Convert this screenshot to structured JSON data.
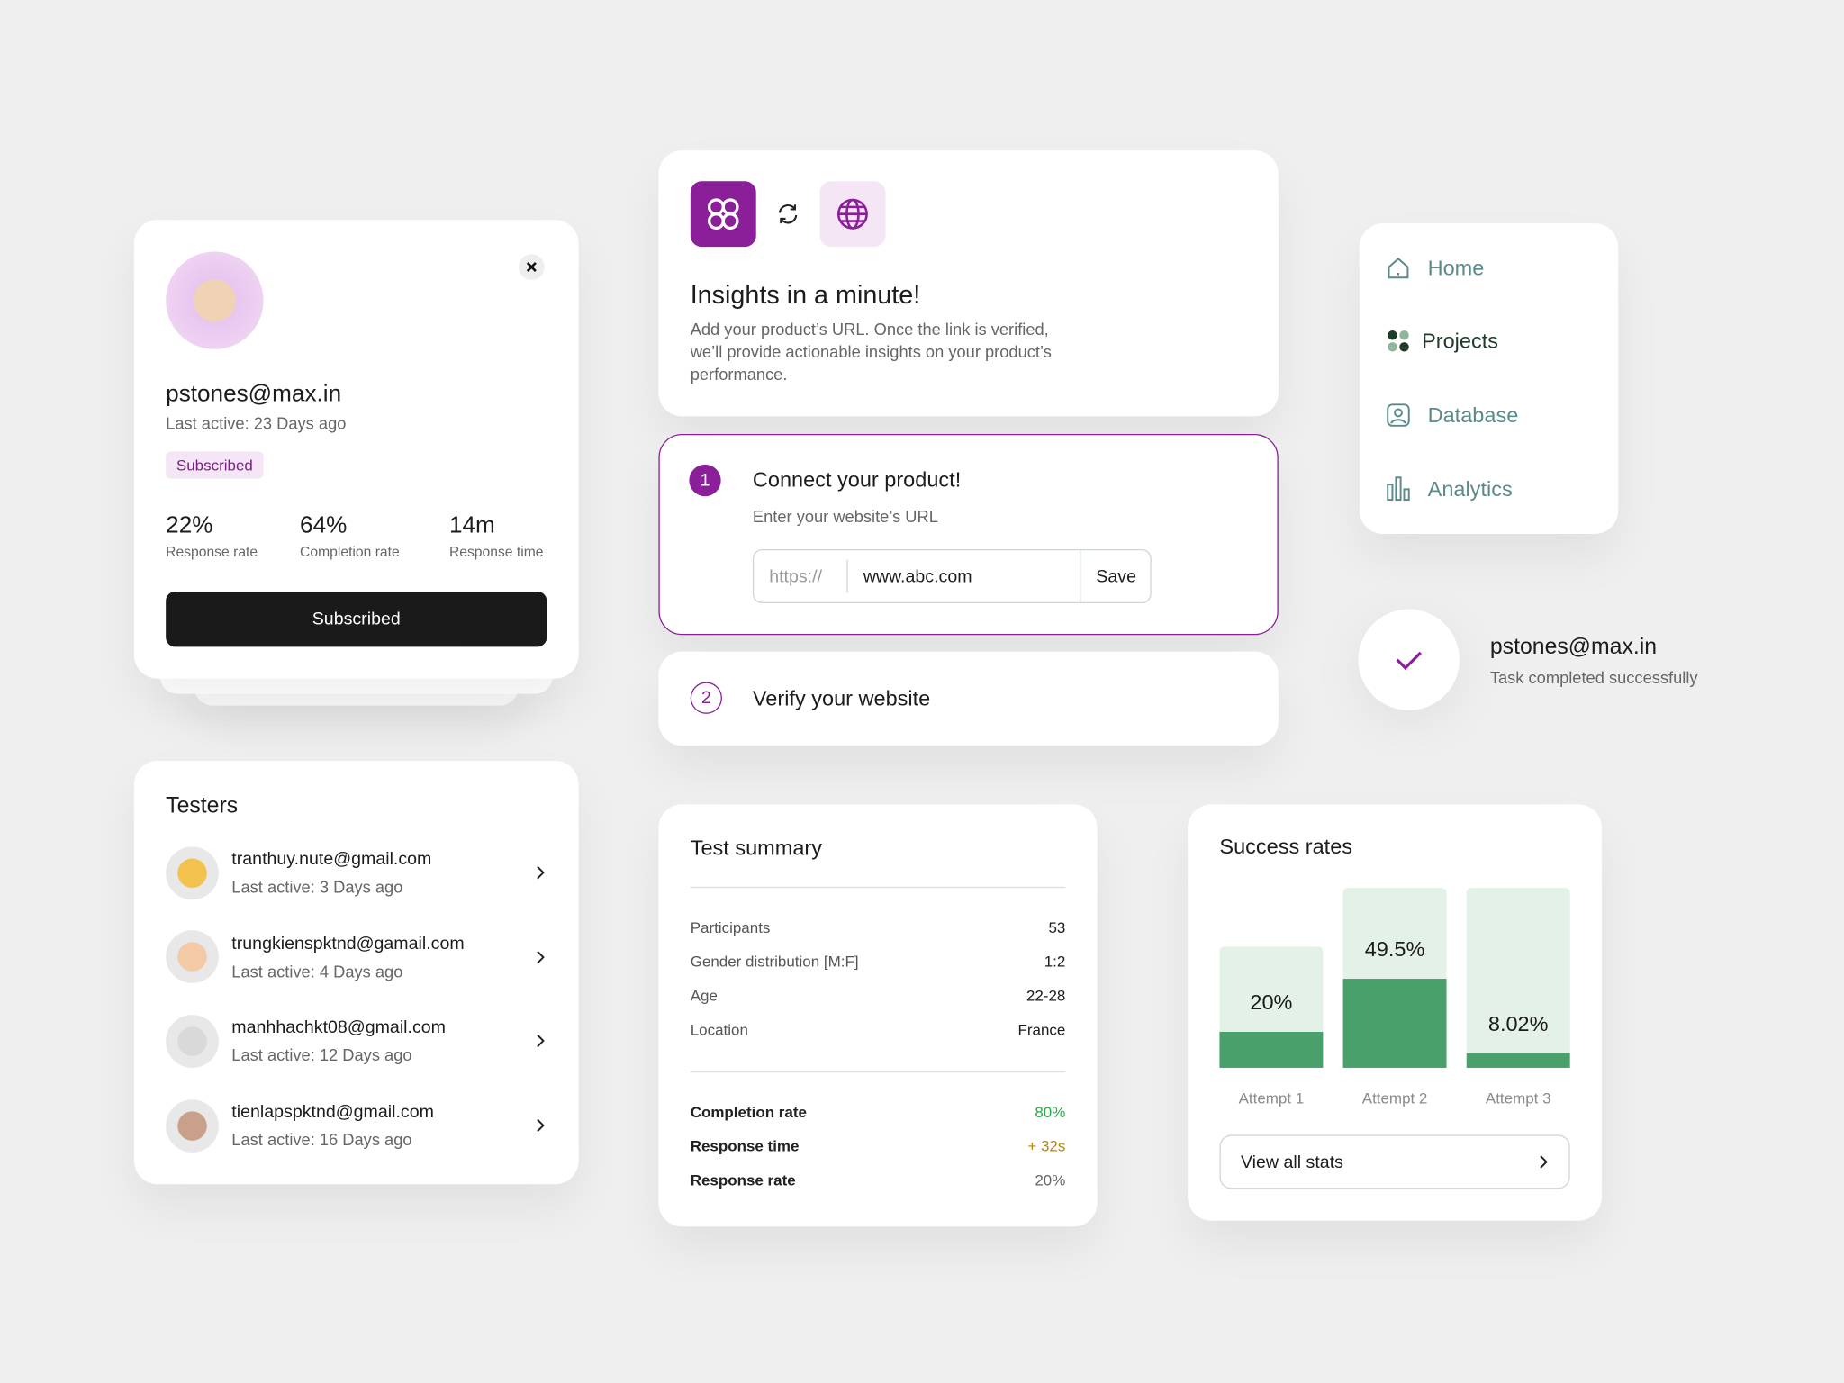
{
  "profile": {
    "email": "pstones@max.in",
    "last_active": "Last active: 23 Days ago",
    "badge": "Subscribed",
    "stats": [
      {
        "value": "22%",
        "label": "Response rate"
      },
      {
        "value": "64%",
        "label": "Completion rate"
      },
      {
        "value": "14m",
        "label": "Response time"
      }
    ],
    "button": "Subscribed"
  },
  "testers": {
    "title": "Testers",
    "items": [
      {
        "email": "tranthuy.nute@gmail.com",
        "last_active": "Last active: 3 Days ago"
      },
      {
        "email": "trungkienspktnd@gamail.com",
        "last_active": "Last active: 4 Days ago"
      },
      {
        "email": "manhhachkt08@gmail.com",
        "last_active": "Last active: 12 Days ago"
      },
      {
        "email": "tienlapspktnd@gmail.com",
        "last_active": "Last active: 16 Days ago"
      }
    ]
  },
  "insights": {
    "title": "Insights in a minute!",
    "description": "Add your product’s URL. Once the link is verified, we’ll provide actionable insights on your product’s performance."
  },
  "connect": {
    "step": "1",
    "title": "Connect your product!",
    "subtitle": "Enter your website’s URL",
    "prefix": "https://",
    "url": "www.abc.com",
    "button": "Save"
  },
  "verify": {
    "step": "2",
    "title": "Verify your website"
  },
  "nav": {
    "items": [
      "Home",
      "Projects",
      "Database",
      "Analytics"
    ]
  },
  "toast": {
    "email": "pstones@max.in",
    "message": "Task completed successfully"
  },
  "test_summary": {
    "title": "Test summary",
    "rows": [
      [
        "Participants",
        "53"
      ],
      [
        "Gender distribution [M:F]",
        "1:2"
      ],
      [
        "Age",
        "22-28"
      ],
      [
        "Location",
        "France"
      ]
    ],
    "metrics": [
      [
        "Completion rate",
        "80%"
      ],
      [
        "Response time",
        "+ 32s"
      ],
      [
        "Response rate",
        "20%"
      ]
    ]
  },
  "success_rates": {
    "title": "Success rates",
    "categories": [
      "Attempt 1",
      "Attempt 2",
      "Attempt 3"
    ],
    "values": [
      20,
      49.5,
      8.02
    ],
    "value_labels": [
      "20%",
      "49.5%",
      "8.02%"
    ],
    "color": "#4aa06a",
    "track_color": "#e3f1e6",
    "button": "View all stats"
  }
}
